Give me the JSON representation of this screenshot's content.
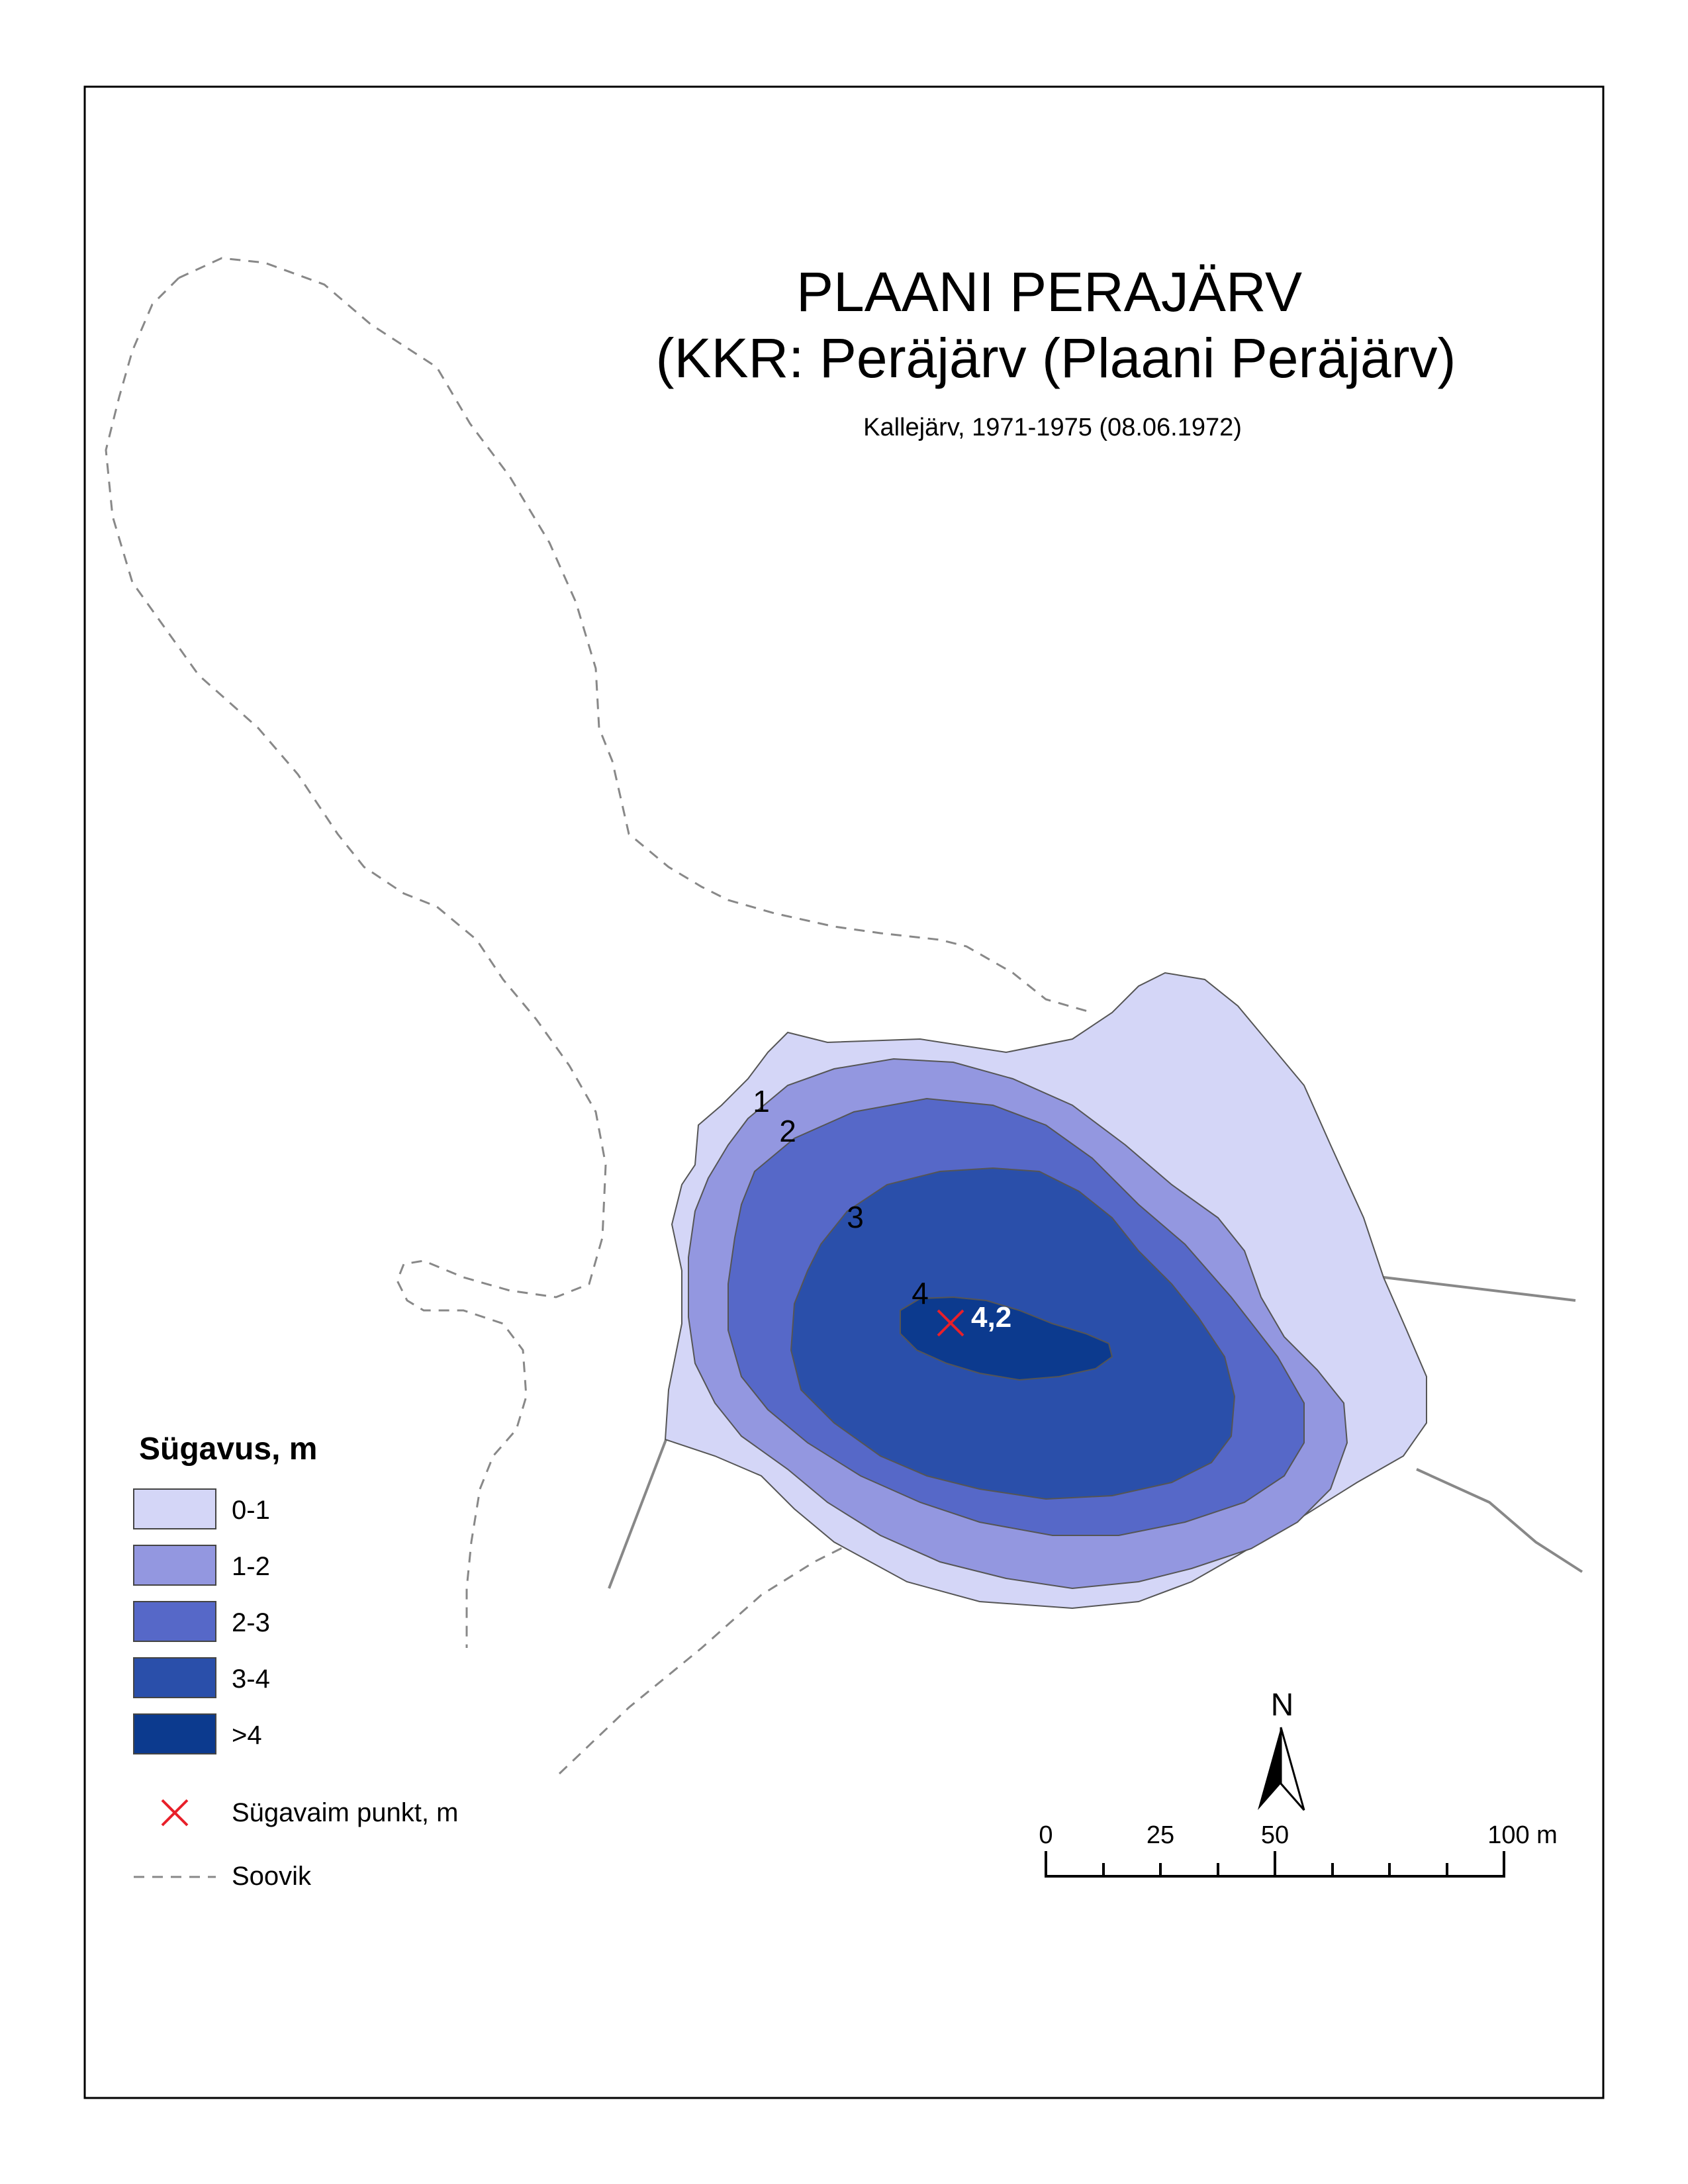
{
  "map": {
    "title": "PLAANI PERAJÄRV",
    "subtitle": "(KKR: Peräjärv (Plaani Peräjärv)",
    "source": "Kallejärv, 1971-1975 (08.06.1972)",
    "contour_labels": [
      "1",
      "2",
      "3",
      "4"
    ],
    "deepest_point": {
      "value": "4,2",
      "color": "#e8202a"
    }
  },
  "legend": {
    "title": "Sügavus, m",
    "classes": [
      {
        "label": "0-1",
        "color": "#d4d6f7"
      },
      {
        "label": "1-2",
        "color": "#9397e0"
      },
      {
        "label": "2-3",
        "color": "#5668c8"
      },
      {
        "label": "3-4",
        "color": "#2a4faa"
      },
      {
        "label": ">4",
        "color": "#0c3a8e"
      }
    ],
    "deepest_point_label": "Sügavaim punkt, m",
    "bog_label": "Soovik"
  },
  "north_arrow": {
    "label": "N"
  },
  "scale_bar": {
    "ticks": [
      "0",
      "25",
      "50",
      "100 m"
    ]
  }
}
